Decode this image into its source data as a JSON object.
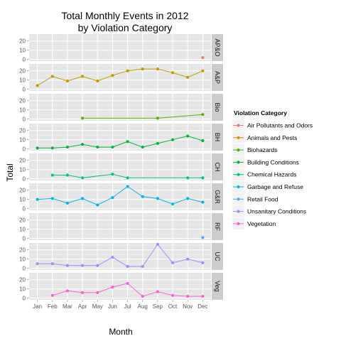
{
  "chart_data": {
    "type": "line",
    "title_line1": "Total Monthly Events in 2012",
    "title_line2": "by Violation Category",
    "xlabel": "Month",
    "ylabel": "Total",
    "categories": [
      "Jan",
      "Feb",
      "Mar",
      "Apr",
      "May",
      "Jun",
      "Jul",
      "Aug",
      "Sep",
      "Oct",
      "Nov",
      "Dec"
    ],
    "ylim": [
      0,
      25
    ],
    "yticks": [
      0,
      10,
      20
    ],
    "grid": true,
    "legend_position": "right",
    "legend_title": "Violation Category",
    "facets": [
      {
        "strip": "AP&O",
        "name": "Air Pollutants and Odors",
        "color": "#F8766D",
        "points": [
          [
            12,
            2
          ]
        ]
      },
      {
        "strip": "A&P",
        "name": "Animals and Pests",
        "color": "#C49A00",
        "points": [
          [
            1,
            4
          ],
          [
            2,
            14
          ],
          [
            3,
            9
          ],
          [
            4,
            14
          ],
          [
            5,
            9
          ],
          [
            6,
            15
          ],
          [
            7,
            20
          ],
          [
            8,
            22
          ],
          [
            9,
            22
          ],
          [
            10,
            18
          ],
          [
            11,
            13
          ],
          [
            12,
            20
          ]
        ]
      },
      {
        "strip": "Bio",
        "name": "Biohazards",
        "color": "#53B400",
        "points": [
          [
            4,
            1
          ],
          [
            9,
            1
          ],
          [
            12,
            5
          ]
        ]
      },
      {
        "strip": "BH",
        "name": "Building Conditions",
        "color": "#00B839",
        "points": [
          [
            1,
            1
          ],
          [
            2,
            1
          ],
          [
            3,
            2
          ],
          [
            4,
            5
          ],
          [
            5,
            2
          ],
          [
            6,
            2
          ],
          [
            7,
            8
          ],
          [
            8,
            2
          ],
          [
            9,
            6
          ],
          [
            10,
            10
          ],
          [
            11,
            14
          ],
          [
            12,
            9
          ]
        ]
      },
      {
        "strip": "CH",
        "name": "Chemical Hazards",
        "color": "#00C094",
        "points": [
          [
            2,
            4
          ],
          [
            3,
            4
          ],
          [
            4,
            1
          ],
          [
            6,
            5
          ],
          [
            7,
            1
          ],
          [
            11,
            1
          ],
          [
            12,
            1
          ]
        ]
      },
      {
        "strip": "G&R",
        "name": "Garbage and Refuse",
        "color": "#00B6EB",
        "points": [
          [
            1,
            10
          ],
          [
            2,
            11
          ],
          [
            3,
            6
          ],
          [
            4,
            11
          ],
          [
            5,
            4
          ],
          [
            6,
            12
          ],
          [
            7,
            24
          ],
          [
            8,
            13
          ],
          [
            9,
            11
          ],
          [
            10,
            5
          ],
          [
            11,
            11
          ],
          [
            12,
            7
          ]
        ]
      },
      {
        "strip": "RF",
        "name": "Retail Food",
        "color": "#619CFF",
        "points": [
          [
            12,
            1
          ]
        ]
      },
      {
        "strip": "UC",
        "name": "Unsanitary Conditions",
        "color": "#A58AFF",
        "points": [
          [
            1,
            5
          ],
          [
            2,
            5
          ],
          [
            3,
            3
          ],
          [
            4,
            3
          ],
          [
            5,
            3
          ],
          [
            6,
            12
          ],
          [
            7,
            2
          ],
          [
            8,
            2
          ],
          [
            9,
            26
          ],
          [
            10,
            6
          ],
          [
            11,
            10
          ],
          [
            12,
            6
          ]
        ]
      },
      {
        "strip": "Veg",
        "name": "Vegetation",
        "color": "#FB61D7",
        "points": [
          [
            2,
            3
          ],
          [
            3,
            8
          ],
          [
            4,
            6
          ],
          [
            5,
            6
          ],
          [
            6,
            12
          ],
          [
            7,
            16
          ],
          [
            8,
            2
          ],
          [
            9,
            7
          ],
          [
            10,
            3
          ],
          [
            11,
            2
          ],
          [
            12,
            2
          ]
        ]
      }
    ]
  }
}
